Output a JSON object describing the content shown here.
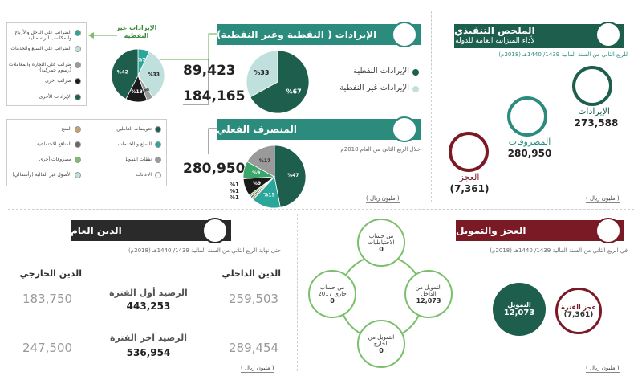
{
  "summary": {
    "title": "الملخص التنفيذي",
    "subtitle": "لأداء الميزانية العامة للدولة",
    "period": "للربع الثاني من السنة المالية 1439/ 1440هـ (2018م)",
    "revenue_label": "الإيرادات",
    "revenue_value": "273,588",
    "expenses_label": "المصروفات",
    "expenses_value": "280,950",
    "deficit_label": "العجز",
    "deficit_value": "(7,361)",
    "unit": "( مليون ريال )",
    "colors": {
      "revenue": "#1d5e4c",
      "expenses": "#2b8b7d",
      "deficit": "#7a1a24"
    }
  },
  "revenues": {
    "title": "الإيرادات ( النفطية وغير النفطية)",
    "oil_value": "89,423",
    "nonoil_value": "184,165",
    "oil_label": "الإيرادات النفطية",
    "nonoil_label": "الإيرادات غير النفطية",
    "nonoil_breakdown_title": "الإيرادات غير النفطية",
    "legend": [
      {
        "label": "الضرائب على الدخل والأرباح والمكاسب الرأسمالية",
        "color": "#2ba79a"
      },
      {
        "label": "الضرائب على السلع والخدمات",
        "color": "#bfe0dc"
      },
      {
        "label": "ضرائب على التجارة والمعاملات (رسوم جمركية)",
        "color": "#9a9a9a"
      },
      {
        "label": "ضرائب أخرى",
        "color": "#1a1a1a"
      },
      {
        "label": "الإيرادات الأخرى",
        "color": "#1d5e4c"
      }
    ]
  },
  "expenditure": {
    "title": "المنصرف الفعلي",
    "subtitle": "خلال الربع الثاني من العام 2018م",
    "value": "280,950",
    "unit": "( مليون ريال )",
    "legend": [
      {
        "label": "تعويضات العاملين",
        "color": "#1d5e4c"
      },
      {
        "label": "السلع و الخدمات",
        "color": "#2ba79a"
      },
      {
        "label": "نفقات التمويل",
        "color": "#9a9a9a"
      },
      {
        "label": "الإعانات",
        "color": "#ffffff"
      },
      {
        "label": "المنح",
        "color": "#c9a26b"
      },
      {
        "label": "المنافع الاجتماعية",
        "color": "#666666"
      },
      {
        "label": "مصروفات أخرى",
        "color": "#7bbf6a"
      },
      {
        "label": "الأصول غير المالية (رأسمالي)",
        "color": "#bfe0dc"
      }
    ]
  },
  "debt": {
    "title": "الدين العام",
    "period": "حتى نهاية الربع الثاني من السنة المالية 1439/ 1440هـ (2018م)",
    "domestic_label": "الدين الداخلي",
    "external_label": "الدين الخارجي",
    "opening_label": "الرصيد أول الفترة",
    "opening_total": "443,253",
    "opening_domestic": "259,503",
    "opening_external": "183,750",
    "closing_label": "الرصيد آخر الفترة",
    "closing_total": "536,954",
    "closing_domestic": "289,454",
    "closing_external": "247,500",
    "unit": "( مليون ريال )"
  },
  "financing": {
    "title": "العجز والتمويل",
    "period": "في الربع الثاني من السنة المالية 1439/ 1440هـ (2018م)",
    "reserves_label": "من حساب الاحتياطيات",
    "reserves_value": "0",
    "domestic_label": "التمويل من الداخل",
    "domestic_value": "12,073",
    "external_label": "التمويل من الخارج",
    "external_value": "0",
    "current_label": "من حساب جاري 2017",
    "current_value": "0",
    "deficit_label": "عجز الفترة",
    "deficit_value": "(7,361)",
    "funding_label": "التمويل",
    "funding_value": "12,073",
    "unit": "( مليون ريال )"
  },
  "chart_data": [
    {
      "type": "pie",
      "name": "oil-vs-nonoil",
      "labels": [
        "%67",
        "%33"
      ],
      "values": [
        67,
        33
      ],
      "colors": [
        "#1d5e4c",
        "#bfe0dc"
      ]
    },
    {
      "type": "pie",
      "name": "nonoil-breakdown",
      "labels": [
        "%7",
        "%33",
        "%4",
        "%13",
        "%42"
      ],
      "values": [
        7,
        33,
        4,
        13,
        42
      ],
      "colors": [
        "#2ba79a",
        "#bfe0dc",
        "#9a9a9a",
        "#1a1a1a",
        "#1d5e4c"
      ]
    },
    {
      "type": "pie",
      "name": "expenditure-breakdown",
      "labels": [
        "%47",
        "%15",
        "%1",
        "%1",
        "%1",
        "%9",
        "%9",
        "%17"
      ],
      "values": [
        47,
        15,
        1,
        1,
        1,
        9,
        9,
        17
      ],
      "colors": [
        "#1d5e4c",
        "#2ba79a",
        "#c9a26b",
        "#666666",
        "#7bbf6a",
        "#1a1a1a",
        "#3aa66a",
        "#9a9a9a"
      ]
    }
  ]
}
